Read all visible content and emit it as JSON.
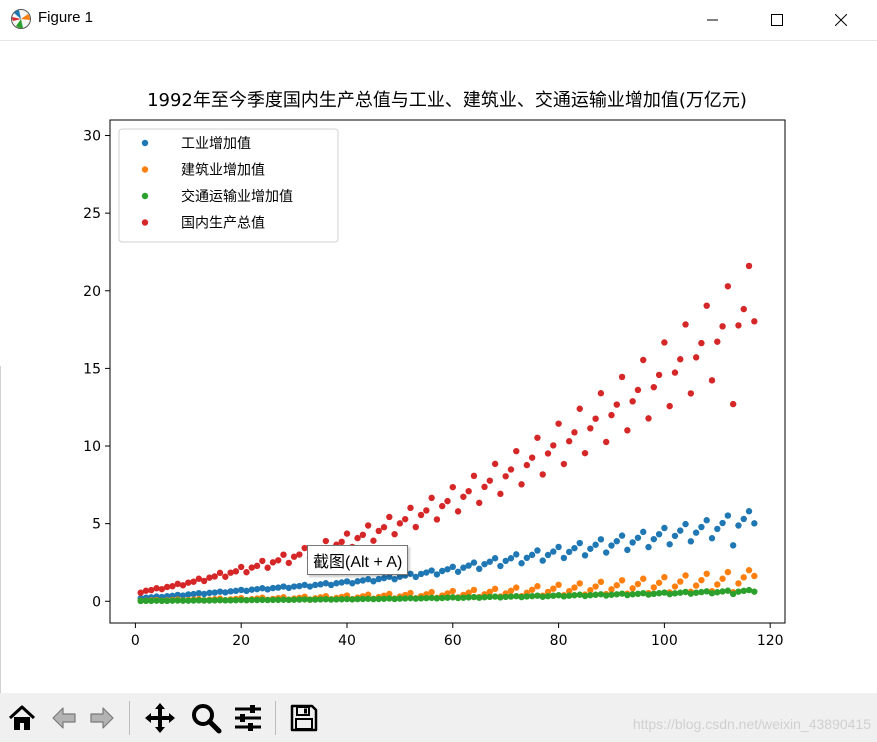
{
  "window": {
    "title": "Figure 1",
    "minimize_icon": "minimize-icon",
    "maximize_icon": "maximize-icon",
    "close_icon": "close-icon"
  },
  "tooltip": "截图(Alt + A)",
  "watermark": "https://blog.csdn.net/weixin_43890415",
  "toolbar": {
    "buttons": [
      "home-icon",
      "back-arrow-icon",
      "forward-arrow-icon",
      "pan-icon",
      "zoom-icon",
      "configure-subplots-icon",
      "save-icon"
    ]
  },
  "chart_data": {
    "type": "scatter",
    "title": "1992年至今季度国内生产总值与工业、建筑业、交通运输业增加值(万亿元)",
    "xlabel": "",
    "ylabel": "",
    "xlim": [
      -4.8,
      122.8
    ],
    "ylim": [
      -1.4,
      31.0
    ],
    "xticks": [
      0,
      20,
      40,
      60,
      80,
      100,
      120
    ],
    "yticks": [
      0,
      5,
      10,
      15,
      20,
      25,
      30
    ],
    "legend_position": "top-left",
    "colors": [
      "#1f77b4",
      "#ff7f0e",
      "#2ca02c",
      "#d62728"
    ],
    "x": [
      1,
      2,
      3,
      4,
      5,
      6,
      7,
      8,
      9,
      10,
      11,
      12,
      13,
      14,
      15,
      16,
      17,
      18,
      19,
      20,
      21,
      22,
      23,
      24,
      25,
      26,
      27,
      28,
      29,
      30,
      31,
      32,
      33,
      34,
      35,
      36,
      37,
      38,
      39,
      40,
      41,
      42,
      43,
      44,
      45,
      46,
      47,
      48,
      49,
      50,
      51,
      52,
      53,
      54,
      55,
      56,
      57,
      58,
      59,
      60,
      61,
      62,
      63,
      64,
      65,
      66,
      67,
      68,
      69,
      70,
      71,
      72,
      73,
      74,
      75,
      76,
      77,
      78,
      79,
      80,
      81,
      82,
      83,
      84,
      85,
      86,
      87,
      88,
      89,
      90,
      91,
      92,
      93,
      94,
      95,
      96,
      97,
      98,
      99,
      100,
      101,
      102,
      103,
      104,
      105,
      106,
      107,
      108,
      109,
      110,
      111,
      112,
      113,
      114,
      115,
      116,
      117
    ],
    "series": [
      {
        "name": "工业增加值",
        "values": [
          0.19,
          0.23,
          0.25,
          0.3,
          0.27,
          0.33,
          0.35,
          0.41,
          0.37,
          0.44,
          0.46,
          0.52,
          0.47,
          0.54,
          0.56,
          0.62,
          0.57,
          0.64,
          0.67,
          0.73,
          0.67,
          0.75,
          0.78,
          0.84,
          0.77,
          0.85,
          0.88,
          0.95,
          0.86,
          0.95,
          0.98,
          1.05,
          0.95,
          1.05,
          1.09,
          1.16,
          1.05,
          1.16,
          1.21,
          1.28,
          1.16,
          1.29,
          1.34,
          1.42,
          1.29,
          1.43,
          1.49,
          1.58,
          1.42,
          1.58,
          1.66,
          1.77,
          1.57,
          1.76,
          1.85,
          1.98,
          1.73,
          1.95,
          2.06,
          2.22,
          1.9,
          2.16,
          2.3,
          2.49,
          2.09,
          2.39,
          2.55,
          2.77,
          2.27,
          2.6,
          2.77,
          3.02,
          2.45,
          2.8,
          2.99,
          3.27,
          2.62,
          2.98,
          3.2,
          3.5,
          2.79,
          3.18,
          3.42,
          3.75,
          2.96,
          3.38,
          3.64,
          3.99,
          3.14,
          3.59,
          3.87,
          4.23,
          3.31,
          3.79,
          4.09,
          4.47,
          3.49,
          4.0,
          4.32,
          4.72,
          3.67,
          4.21,
          4.55,
          4.97,
          3.86,
          4.42,
          4.78,
          5.22,
          4.06,
          4.66,
          5.04,
          5.52,
          3.6,
          4.88,
          5.3,
          5.8,
          5.02
        ]
      },
      {
        "name": "建筑业增加值",
        "values": [
          0.03,
          0.04,
          0.06,
          0.08,
          0.04,
          0.06,
          0.08,
          0.11,
          0.05,
          0.08,
          0.1,
          0.14,
          0.06,
          0.1,
          0.13,
          0.17,
          0.07,
          0.12,
          0.15,
          0.2,
          0.08,
          0.13,
          0.17,
          0.23,
          0.09,
          0.15,
          0.2,
          0.26,
          0.1,
          0.17,
          0.22,
          0.29,
          0.11,
          0.19,
          0.25,
          0.33,
          0.13,
          0.21,
          0.28,
          0.37,
          0.14,
          0.24,
          0.32,
          0.42,
          0.16,
          0.27,
          0.36,
          0.47,
          0.18,
          0.3,
          0.4,
          0.53,
          0.2,
          0.33,
          0.45,
          0.59,
          0.22,
          0.37,
          0.5,
          0.66,
          0.25,
          0.41,
          0.55,
          0.73,
          0.27,
          0.45,
          0.61,
          0.8,
          0.3,
          0.5,
          0.67,
          0.88,
          0.33,
          0.55,
          0.74,
          0.97,
          0.36,
          0.6,
          0.81,
          1.06,
          0.39,
          0.65,
          0.88,
          1.15,
          0.43,
          0.71,
          0.95,
          1.25,
          0.46,
          0.77,
          1.03,
          1.35,
          0.49,
          0.83,
          1.11,
          1.45,
          0.53,
          0.89,
          1.19,
          1.55,
          0.57,
          0.95,
          1.27,
          1.66,
          0.61,
          1.01,
          1.36,
          1.77,
          0.65,
          1.08,
          1.45,
          1.88,
          0.58,
          1.15,
          1.54,
          2.0,
          1.63
        ]
      },
      {
        "name": "交通运输业增加值",
        "values": [
          0.02,
          0.03,
          0.03,
          0.04,
          0.03,
          0.03,
          0.04,
          0.05,
          0.04,
          0.04,
          0.05,
          0.06,
          0.05,
          0.05,
          0.06,
          0.07,
          0.06,
          0.06,
          0.07,
          0.08,
          0.07,
          0.08,
          0.08,
          0.09,
          0.08,
          0.09,
          0.09,
          0.1,
          0.09,
          0.1,
          0.11,
          0.12,
          0.1,
          0.11,
          0.12,
          0.13,
          0.11,
          0.12,
          0.13,
          0.14,
          0.12,
          0.14,
          0.15,
          0.16,
          0.14,
          0.15,
          0.16,
          0.18,
          0.15,
          0.17,
          0.18,
          0.2,
          0.17,
          0.19,
          0.2,
          0.22,
          0.19,
          0.21,
          0.23,
          0.25,
          0.21,
          0.23,
          0.25,
          0.27,
          0.23,
          0.26,
          0.28,
          0.3,
          0.25,
          0.28,
          0.3,
          0.33,
          0.27,
          0.31,
          0.33,
          0.36,
          0.29,
          0.33,
          0.36,
          0.39,
          0.32,
          0.36,
          0.39,
          0.42,
          0.34,
          0.39,
          0.42,
          0.45,
          0.37,
          0.42,
          0.45,
          0.49,
          0.4,
          0.45,
          0.48,
          0.52,
          0.43,
          0.48,
          0.52,
          0.56,
          0.46,
          0.51,
          0.55,
          0.6,
          0.49,
          0.55,
          0.59,
          0.64,
          0.52,
          0.58,
          0.63,
          0.68,
          0.47,
          0.62,
          0.67,
          0.72,
          0.62
        ]
      },
      {
        "name": "国内生产总值",
        "values": [
          0.55,
          0.68,
          0.72,
          0.84,
          0.78,
          0.92,
          0.97,
          1.12,
          1.03,
          1.2,
          1.26,
          1.45,
          1.31,
          1.52,
          1.6,
          1.83,
          1.58,
          1.84,
          1.93,
          2.21,
          1.87,
          2.17,
          2.28,
          2.6,
          2.16,
          2.51,
          2.64,
          3.0,
          2.47,
          2.87,
          3.01,
          3.43,
          2.79,
          3.24,
          3.41,
          3.88,
          3.13,
          3.64,
          3.83,
          4.36,
          3.5,
          4.07,
          4.28,
          4.88,
          3.9,
          4.53,
          4.77,
          5.43,
          4.32,
          5.02,
          5.29,
          6.02,
          4.78,
          5.56,
          5.85,
          6.66,
          5.27,
          6.13,
          6.45,
          7.35,
          5.79,
          6.73,
          7.09,
          8.08,
          6.34,
          7.37,
          7.77,
          8.85,
          6.92,
          8.05,
          8.49,
          9.67,
          7.53,
          8.77,
          9.25,
          10.53,
          8.17,
          9.52,
          10.04,
          11.44,
          8.84,
          10.31,
          10.88,
          12.4,
          9.54,
          11.14,
          11.76,
          13.4,
          10.26,
          11.99,
          12.67,
          14.45,
          11.01,
          12.88,
          13.61,
          15.54,
          11.78,
          13.79,
          14.58,
          16.67,
          12.57,
          14.73,
          15.59,
          17.83,
          13.39,
          15.71,
          16.63,
          19.04,
          14.23,
          16.72,
          17.71,
          20.29,
          12.7,
          17.77,
          18.82,
          21.6,
          18.03
        ]
      }
    ]
  }
}
